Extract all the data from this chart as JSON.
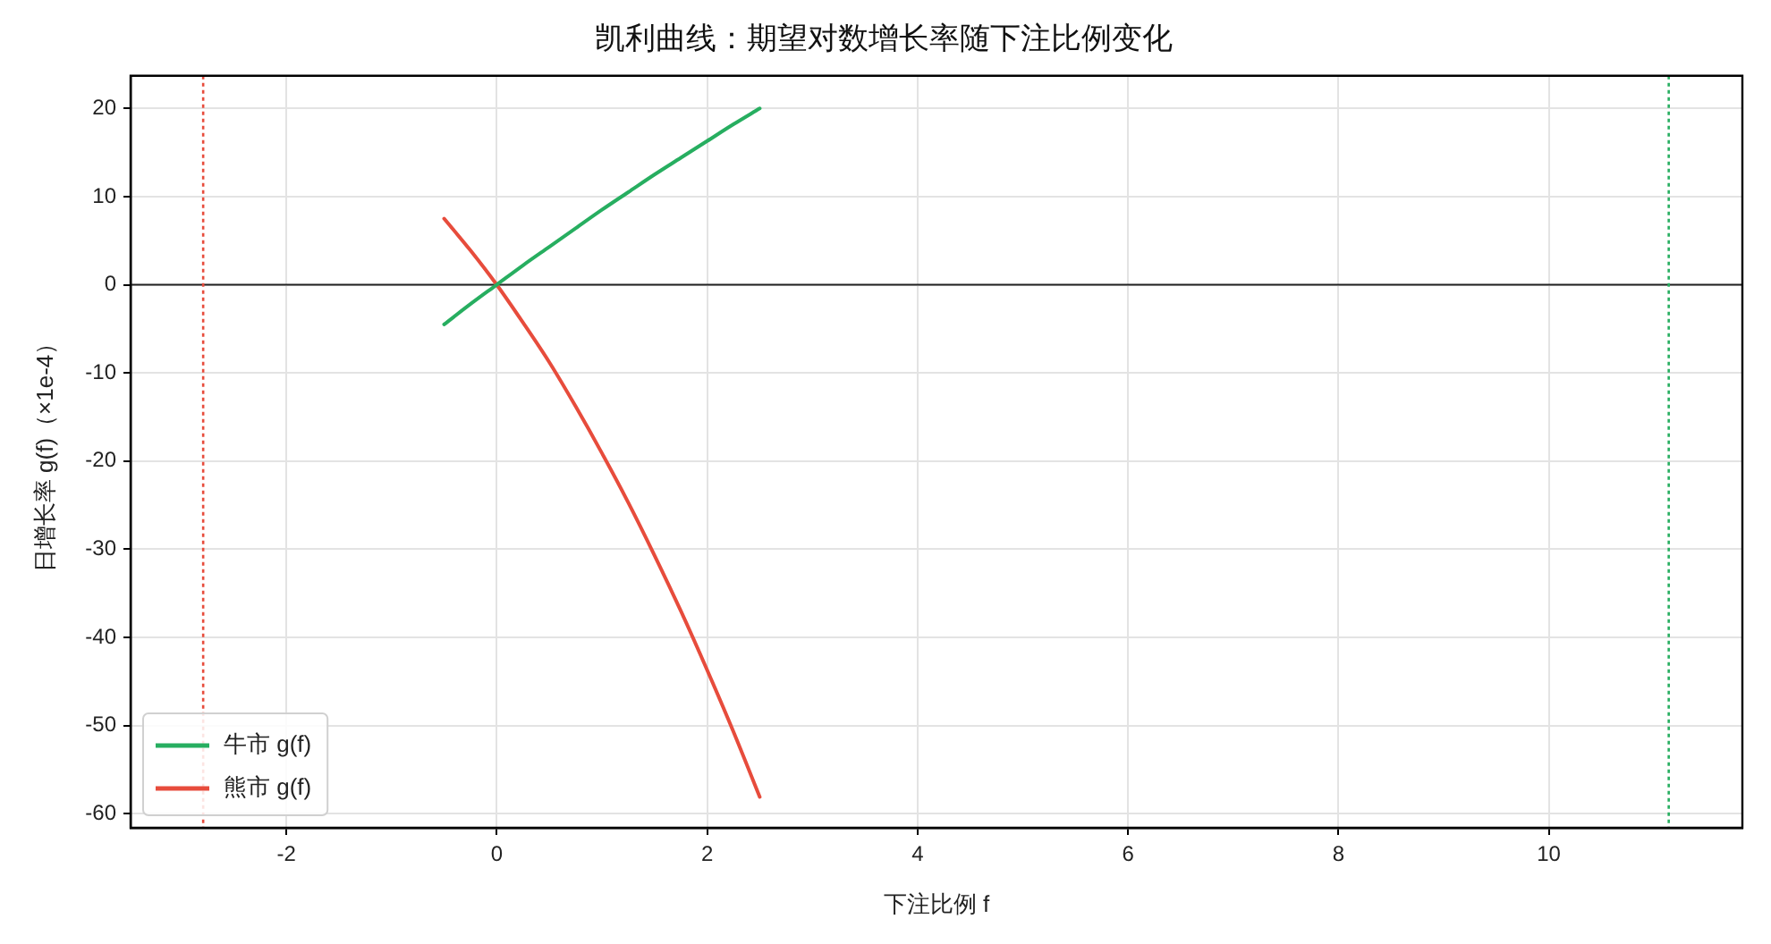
{
  "chart_data": {
    "type": "line",
    "title": "凯利曲线：期望对数增长率随下注比例变化",
    "xlabel": "下注比例 f",
    "ylabel": "日增长率 g(f)（×1e-4）",
    "x": [
      -0.5,
      -0.25,
      0,
      0.25,
      0.5,
      0.75,
      1.0,
      1.25,
      1.5,
      1.75,
      2.0,
      2.25,
      2.5
    ],
    "series": [
      {
        "name": "牛市 g(f)",
        "color": "#27ae60",
        "values": [
          -4.5,
          -2.2,
          0,
          2.2,
          4.3,
          6.4,
          8.5,
          10.5,
          12.5,
          14.4,
          16.3,
          18.2,
          20.0
        ]
      },
      {
        "name": "熊市 g(f)",
        "color": "#e74c3c",
        "values": [
          7.5,
          3.9,
          0,
          -4.3,
          -8.8,
          -13.8,
          -19.1,
          -24.7,
          -30.7,
          -37.0,
          -43.7,
          -50.7,
          -58.1
        ]
      }
    ],
    "xlim": [
      -3.48,
      11.84
    ],
    "ylim": [
      -61.6,
      23.7
    ],
    "xticks": [
      -2,
      0,
      2,
      4,
      6,
      8,
      10
    ],
    "yticks": [
      -60,
      -50,
      -40,
      -30,
      -20,
      -10,
      0,
      10,
      20
    ],
    "ref_lines": [
      {
        "axis": "y",
        "value": 0,
        "color": "#222222",
        "line_style": "solid"
      },
      {
        "axis": "x",
        "value": -2.79,
        "color": "#e74c3c",
        "line_style": "dotted"
      },
      {
        "axis": "x",
        "value": 11.14,
        "color": "#27ae60",
        "line_style": "dotted"
      }
    ],
    "grid": true,
    "legend": "bottom left",
    "marker": "none",
    "line_style": "solid"
  }
}
